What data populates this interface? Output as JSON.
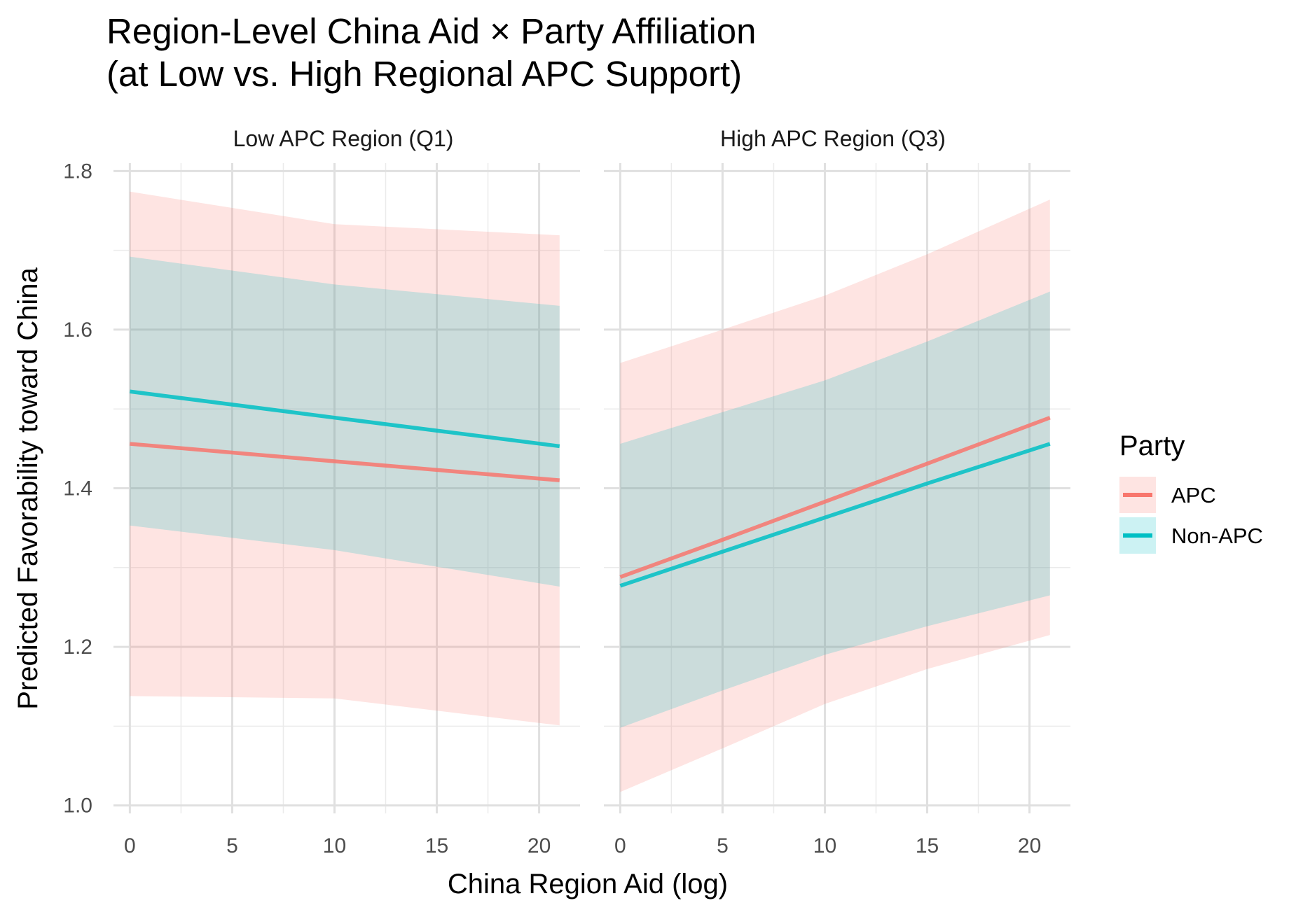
{
  "chart_data": {
    "type": "line",
    "title": "Region-Level China Aid × Party Affiliation\n(at Low vs. High Regional APC Support)",
    "xlabel": "China Region Aid (log)",
    "ylabel": "Predicted Favorability toward China",
    "xlim": [
      -0.8,
      22.0
    ],
    "ylim": [
      0.99,
      1.81
    ],
    "x_ticks": [
      0,
      5,
      10,
      15,
      20
    ],
    "y_ticks": [
      1.0,
      1.2,
      1.4,
      1.6,
      1.8
    ],
    "grid": true,
    "legend": {
      "title": "Party",
      "placement": "right",
      "entries": [
        {
          "name": "APC",
          "color": "#F8766D"
        },
        {
          "name": "Non-APC",
          "color": "#00BFC4"
        }
      ]
    },
    "panels": [
      {
        "label": "Low APC Region (Q1)",
        "series": [
          {
            "name": "APC",
            "color": "#F8766D",
            "x": [
              0,
              10,
              21
            ],
            "y": [
              1.456,
              1.434,
              1.41
            ],
            "lower": [
              1.138,
              1.135,
              1.101
            ],
            "upper": [
              1.774,
              1.733,
              1.719
            ]
          },
          {
            "name": "Non-APC",
            "color": "#00BFC4",
            "x": [
              0,
              10,
              21
            ],
            "y": [
              1.522,
              1.489,
              1.453
            ],
            "lower": [
              1.353,
              1.322,
              1.276
            ],
            "upper": [
              1.692,
              1.657,
              1.63
            ]
          }
        ]
      },
      {
        "label": "High APC Region (Q3)",
        "series": [
          {
            "name": "APC",
            "color": "#F8766D",
            "x": [
              0,
              5,
              10,
              15,
              21
            ],
            "y": [
              1.288,
              1.335,
              1.383,
              1.431,
              1.489
            ],
            "lower": [
              1.017,
              1.072,
              1.128,
              1.172,
              1.215
            ],
            "upper": [
              1.558,
              1.6,
              1.643,
              1.695,
              1.764
            ]
          },
          {
            "name": "Non-APC",
            "color": "#00BFC4",
            "x": [
              0,
              5,
              10,
              15,
              21
            ],
            "y": [
              1.277,
              1.32,
              1.363,
              1.406,
              1.456
            ],
            "lower": [
              1.098,
              1.145,
              1.19,
              1.226,
              1.265
            ],
            "upper": [
              1.456,
              1.496,
              1.536,
              1.585,
              1.648
            ]
          }
        ]
      }
    ]
  }
}
